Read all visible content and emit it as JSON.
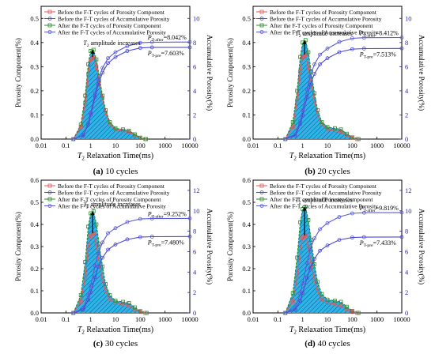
{
  "chart_data": [
    {
      "type": "line",
      "caption_letter": "(a)",
      "caption_text": "10 cycles",
      "xlabel_pre": "T",
      "xlabel_sub": "2",
      "xlabel_post": " Relaxation Time(ms)",
      "ylabel_left": "Porosity Component(%)",
      "ylabel_right": "Accumulative Porosity(%)",
      "x_scale": "log",
      "xlim": [
        0.01,
        10000
      ],
      "ylim_left": [
        0,
        0.55
      ],
      "ylim_right": [
        0,
        11
      ],
      "xticks": [
        "0.01",
        "0.1",
        "1",
        "10",
        "100",
        "1000",
        "10000"
      ],
      "yticks_left": [
        "0.0",
        "0.1",
        "0.2",
        "0.3",
        "0.4",
        "0.5"
      ],
      "yticks_right": [
        "0",
        "2",
        "4",
        "6",
        "8",
        "10"
      ],
      "legend": [
        "Before the F-T cycles of Porosity Component",
        "Before the F-T cycles of Accumulative Porosity",
        "After the F-T cycles of Porosity Component",
        "After the F-T cycles of Accumulative Porosity"
      ],
      "annotation_amplitude_pre": "T",
      "annotation_amplitude_sub": "2",
      "annotation_amplitude_post": " amplitude increases",
      "annot_after": "P",
      "annot_after_sub": "T-after",
      "annot_after_val": "=8.042%",
      "annot_before": "P",
      "annot_before_sub": "T-pre",
      "annot_before_val": "=7.603%",
      "before_component": [
        [
          0.2,
          0.0
        ],
        [
          0.4,
          0.05
        ],
        [
          0.6,
          0.15
        ],
        [
          0.8,
          0.27
        ],
        [
          1.0,
          0.33
        ],
        [
          1.3,
          0.34
        ],
        [
          1.7,
          0.3
        ],
        [
          2.2,
          0.24
        ],
        [
          3.0,
          0.17
        ],
        [
          4.0,
          0.11
        ],
        [
          6.0,
          0.06
        ],
        [
          10,
          0.04
        ],
        [
          20,
          0.035
        ],
        [
          35,
          0.03
        ],
        [
          60,
          0.015
        ],
        [
          100,
          0.005
        ],
        [
          160,
          0.0
        ]
      ],
      "after_component": [
        [
          0.2,
          0.0
        ],
        [
          0.4,
          0.06
        ],
        [
          0.6,
          0.18
        ],
        [
          0.8,
          0.31
        ],
        [
          1.0,
          0.365
        ],
        [
          1.3,
          0.37
        ],
        [
          1.7,
          0.33
        ],
        [
          2.2,
          0.26
        ],
        [
          3.0,
          0.18
        ],
        [
          4.0,
          0.12
        ],
        [
          6.0,
          0.07
        ],
        [
          10,
          0.045
        ],
        [
          20,
          0.04
        ],
        [
          35,
          0.035
        ],
        [
          60,
          0.02
        ],
        [
          100,
          0.006
        ],
        [
          170,
          0.0
        ]
      ],
      "before_accumulative": [
        [
          0.2,
          0.0
        ],
        [
          0.5,
          0.3
        ],
        [
          0.8,
          1.2
        ],
        [
          1.0,
          2.0
        ],
        [
          1.5,
          3.5
        ],
        [
          2.0,
          4.5
        ],
        [
          3.0,
          5.5
        ],
        [
          5.0,
          6.3
        ],
        [
          10,
          6.8
        ],
        [
          30,
          7.3
        ],
        [
          100,
          7.55
        ],
        [
          300,
          7.6
        ],
        [
          10000,
          7.603
        ]
      ],
      "after_accumulative": [
        [
          0.2,
          0.0
        ],
        [
          0.5,
          0.35
        ],
        [
          0.8,
          1.35
        ],
        [
          1.0,
          2.2
        ],
        [
          1.5,
          3.8
        ],
        [
          2.0,
          4.9
        ],
        [
          3.0,
          5.9
        ],
        [
          5.0,
          6.7
        ],
        [
          10,
          7.2
        ],
        [
          30,
          7.7
        ],
        [
          100,
          7.98
        ],
        [
          300,
          8.03
        ],
        [
          10000,
          8.042
        ]
      ]
    },
    {
      "type": "line",
      "caption_letter": "(b)",
      "caption_text": "20 cycles",
      "xlabel_pre": "T",
      "xlabel_sub": "2",
      "xlabel_post": " Relaxation Time(ms)",
      "ylabel_left": "Porosity Component(%)",
      "ylabel_right": "Accumulative Porosity(%)",
      "x_scale": "log",
      "xlim": [
        0.01,
        10000
      ],
      "ylim_left": [
        0,
        0.55
      ],
      "ylim_right": [
        0,
        11
      ],
      "xticks": [
        "0.01",
        "0.1",
        "1",
        "10",
        "100",
        "1000",
        "10000"
      ],
      "yticks_left": [
        "0.0",
        "0.1",
        "0.2",
        "0.3",
        "0.4",
        "0.5"
      ],
      "yticks_right": [
        "0",
        "2",
        "4",
        "6",
        "8",
        "10"
      ],
      "legend": [
        "Before the F-T cycles of Porosity Component",
        "Before the F-T cycles of Accumulative Porosity",
        "After the F-T cycles of Porosity Component",
        "After the F-T cycles of Accumulative Porosity"
      ],
      "annotation_amplitude_pre": "T",
      "annotation_amplitude_sub": "2",
      "annotation_amplitude_post": " amplitude increases",
      "annot_after": "P",
      "annot_after_sub": "T-after",
      "annot_after_val": "=8.412%",
      "annot_before": "P",
      "annot_before_sub": "T-pre",
      "annot_before_val": "=7.513%",
      "before_component": [
        [
          0.2,
          0.0
        ],
        [
          0.4,
          0.05
        ],
        [
          0.6,
          0.16
        ],
        [
          0.8,
          0.28
        ],
        [
          1.0,
          0.34
        ],
        [
          1.3,
          0.35
        ],
        [
          1.7,
          0.3
        ],
        [
          2.2,
          0.23
        ],
        [
          3.0,
          0.16
        ],
        [
          4.0,
          0.1
        ],
        [
          6.0,
          0.06
        ],
        [
          10,
          0.04
        ],
        [
          20,
          0.035
        ],
        [
          35,
          0.03
        ],
        [
          60,
          0.015
        ],
        [
          100,
          0.005
        ],
        [
          160,
          0.0
        ]
      ],
      "after_component": [
        [
          0.2,
          0.0
        ],
        [
          0.4,
          0.07
        ],
        [
          0.6,
          0.2
        ],
        [
          0.8,
          0.34
        ],
        [
          1.0,
          0.4
        ],
        [
          1.3,
          0.41
        ],
        [
          1.7,
          0.36
        ],
        [
          2.2,
          0.28
        ],
        [
          3.0,
          0.19
        ],
        [
          4.0,
          0.12
        ],
        [
          6.0,
          0.07
        ],
        [
          10,
          0.05
        ],
        [
          20,
          0.045
        ],
        [
          35,
          0.04
        ],
        [
          60,
          0.022
        ],
        [
          100,
          0.007
        ],
        [
          180,
          0.0
        ]
      ],
      "before_accumulative": [
        [
          0.2,
          0.0
        ],
        [
          0.5,
          0.3
        ],
        [
          0.8,
          1.25
        ],
        [
          1.0,
          2.0
        ],
        [
          1.5,
          3.5
        ],
        [
          2.0,
          4.5
        ],
        [
          3.0,
          5.4
        ],
        [
          5.0,
          6.2
        ],
        [
          10,
          6.7
        ],
        [
          30,
          7.2
        ],
        [
          100,
          7.45
        ],
        [
          300,
          7.5
        ],
        [
          10000,
          7.513
        ]
      ],
      "after_accumulative": [
        [
          0.2,
          0.0
        ],
        [
          0.5,
          0.4
        ],
        [
          0.8,
          1.5
        ],
        [
          1.0,
          2.4
        ],
        [
          1.5,
          4.1
        ],
        [
          2.0,
          5.2
        ],
        [
          3.0,
          6.2
        ],
        [
          5.0,
          7.0
        ],
        [
          10,
          7.5
        ],
        [
          30,
          8.05
        ],
        [
          100,
          8.35
        ],
        [
          300,
          8.4
        ],
        [
          10000,
          8.412
        ]
      ]
    },
    {
      "type": "line",
      "caption_letter": "(c)",
      "caption_text": "30 cycles",
      "xlabel_pre": "T",
      "xlabel_sub": "2",
      "xlabel_post": " Relaxation Time(ms)",
      "ylabel_left": "Porosity Component(%)",
      "ylabel_right": "Accumulative Porosity(%)",
      "x_scale": "log",
      "xlim": [
        0.01,
        10000
      ],
      "ylim_left": [
        0,
        0.6
      ],
      "ylim_right": [
        0,
        13
      ],
      "xticks": [
        "0.01",
        "0.1",
        "1",
        "10",
        "100",
        "1000",
        "10000"
      ],
      "yticks_left": [
        "0.0",
        "0.1",
        "0.2",
        "0.3",
        "0.4",
        "0.5",
        "0.6"
      ],
      "yticks_right": [
        "0",
        "2",
        "4",
        "6",
        "8",
        "10",
        "12"
      ],
      "legend": [
        "Before the F-T cycles of Porosity Component",
        "Before the F-T cycles of Accumulative Porosity",
        "After the F-T cycles of Porosity Component",
        "After the F-T cycles of Accumulative Porosity"
      ],
      "annotation_amplitude_pre": "T",
      "annotation_amplitude_sub": "2",
      "annotation_amplitude_post": " amplitude increases",
      "annot_after": "P",
      "annot_after_sub": "T-after",
      "annot_after_val": "=9.252%",
      "annot_before": "P",
      "annot_before_sub": "T-pre",
      "annot_before_val": "=7.480%",
      "before_component": [
        [
          0.2,
          0.0
        ],
        [
          0.4,
          0.05
        ],
        [
          0.6,
          0.16
        ],
        [
          0.8,
          0.29
        ],
        [
          1.0,
          0.35
        ],
        [
          1.3,
          0.36
        ],
        [
          1.7,
          0.31
        ],
        [
          2.2,
          0.23
        ],
        [
          3.0,
          0.15
        ],
        [
          4.0,
          0.1
        ],
        [
          6.0,
          0.06
        ],
        [
          10,
          0.045
        ],
        [
          20,
          0.04
        ],
        [
          35,
          0.032
        ],
        [
          60,
          0.015
        ],
        [
          100,
          0.005
        ],
        [
          160,
          0.0
        ]
      ],
      "after_component": [
        [
          0.2,
          0.0
        ],
        [
          0.4,
          0.08
        ],
        [
          0.6,
          0.23
        ],
        [
          0.8,
          0.39
        ],
        [
          1.0,
          0.45
        ],
        [
          1.3,
          0.46
        ],
        [
          1.7,
          0.4
        ],
        [
          2.2,
          0.31
        ],
        [
          3.0,
          0.21
        ],
        [
          4.0,
          0.13
        ],
        [
          6.0,
          0.08
        ],
        [
          10,
          0.055
        ],
        [
          20,
          0.05
        ],
        [
          35,
          0.045
        ],
        [
          60,
          0.025
        ],
        [
          100,
          0.008
        ],
        [
          180,
          0.0
        ]
      ],
      "before_accumulative": [
        [
          0.2,
          0.0
        ],
        [
          0.5,
          0.3
        ],
        [
          0.8,
          1.25
        ],
        [
          1.0,
          2.0
        ],
        [
          1.5,
          3.5
        ],
        [
          2.0,
          4.5
        ],
        [
          3.0,
          5.4
        ],
        [
          5.0,
          6.2
        ],
        [
          10,
          6.7
        ],
        [
          30,
          7.2
        ],
        [
          100,
          7.42
        ],
        [
          300,
          7.47
        ],
        [
          10000,
          7.48
        ]
      ],
      "after_accumulative": [
        [
          0.2,
          0.0
        ],
        [
          0.5,
          0.45
        ],
        [
          0.8,
          1.7
        ],
        [
          1.0,
          2.7
        ],
        [
          1.5,
          4.6
        ],
        [
          2.0,
          5.8
        ],
        [
          3.0,
          6.9
        ],
        [
          5.0,
          7.8
        ],
        [
          10,
          8.3
        ],
        [
          30,
          8.9
        ],
        [
          100,
          9.2
        ],
        [
          300,
          9.24
        ],
        [
          10000,
          9.252
        ]
      ]
    },
    {
      "type": "line",
      "caption_letter": "(d)",
      "caption_text": "40 cycles",
      "xlabel_pre": "T",
      "xlabel_sub": "2",
      "xlabel_post": " Relaxation Time(ms)",
      "ylabel_left": "Porosity Component(%)",
      "ylabel_right": "Accumulative Porosity(%)",
      "x_scale": "log",
      "xlim": [
        0.01,
        10000
      ],
      "ylim_left": [
        0,
        0.6
      ],
      "ylim_right": [
        0,
        13
      ],
      "xticks": [
        "0.01",
        "0.1",
        "1",
        "10",
        "100",
        "1000",
        "10000"
      ],
      "yticks_left": [
        "0.0",
        "0.1",
        "0.2",
        "0.3",
        "0.4",
        "0.5",
        "0.6"
      ],
      "yticks_right": [
        "0",
        "2",
        "4",
        "6",
        "8",
        "10",
        "12"
      ],
      "legend": [
        "Before the F-T cycles of Porosity Component",
        "Before the F-T cycles of Accumulative Porosity",
        "After the F-T cycles of Porosity Component",
        "After the F-T cycles of Accumulative Porosity"
      ],
      "annotation_amplitude_pre": "T",
      "annotation_amplitude_sub": "2",
      "annotation_amplitude_post": " amplitude increases",
      "annot_after": "P",
      "annot_after_sub": "T-after",
      "annot_after_val": "=9.819%",
      "annot_before": "P",
      "annot_before_sub": "T-pre",
      "annot_before_val": "=7.433%",
      "before_component": [
        [
          0.2,
          0.0
        ],
        [
          0.4,
          0.05
        ],
        [
          0.6,
          0.16
        ],
        [
          0.8,
          0.28
        ],
        [
          1.0,
          0.34
        ],
        [
          1.3,
          0.35
        ],
        [
          1.7,
          0.3
        ],
        [
          2.2,
          0.22
        ],
        [
          3.0,
          0.15
        ],
        [
          4.0,
          0.1
        ],
        [
          6.0,
          0.06
        ],
        [
          10,
          0.045
        ],
        [
          20,
          0.04
        ],
        [
          35,
          0.032
        ],
        [
          60,
          0.015
        ],
        [
          100,
          0.005
        ],
        [
          160,
          0.0
        ]
      ],
      "after_component": [
        [
          0.2,
          0.0
        ],
        [
          0.4,
          0.09
        ],
        [
          0.6,
          0.25
        ],
        [
          0.8,
          0.41
        ],
        [
          1.0,
          0.47
        ],
        [
          1.3,
          0.48
        ],
        [
          1.7,
          0.42
        ],
        [
          2.2,
          0.33
        ],
        [
          3.0,
          0.22
        ],
        [
          4.0,
          0.14
        ],
        [
          6.0,
          0.085
        ],
        [
          10,
          0.06
        ],
        [
          20,
          0.055
        ],
        [
          35,
          0.05
        ],
        [
          60,
          0.028
        ],
        [
          100,
          0.009
        ],
        [
          180,
          0.0
        ]
      ],
      "before_accumulative": [
        [
          0.2,
          0.0
        ],
        [
          0.5,
          0.3
        ],
        [
          0.8,
          1.2
        ],
        [
          1.0,
          1.95
        ],
        [
          1.5,
          3.4
        ],
        [
          2.0,
          4.4
        ],
        [
          3.0,
          5.3
        ],
        [
          5.0,
          6.1
        ],
        [
          10,
          6.6
        ],
        [
          30,
          7.15
        ],
        [
          100,
          7.38
        ],
        [
          300,
          7.42
        ],
        [
          10000,
          7.433
        ]
      ],
      "after_accumulative": [
        [
          0.2,
          0.0
        ],
        [
          0.5,
          0.5
        ],
        [
          0.8,
          1.85
        ],
        [
          1.0,
          2.9
        ],
        [
          1.5,
          4.9
        ],
        [
          2.0,
          6.2
        ],
        [
          3.0,
          7.3
        ],
        [
          5.0,
          8.2
        ],
        [
          10,
          8.8
        ],
        [
          30,
          9.4
        ],
        [
          100,
          9.75
        ],
        [
          300,
          9.81
        ],
        [
          10000,
          9.819
        ]
      ]
    }
  ],
  "colors": {
    "before_component": "#e05a5a",
    "before_accumulative": "#4a4ad8",
    "after_component": "#2e8b2e",
    "after_accumulative": "#5a5ad8",
    "fill": "#20b2e6",
    "hatch": "#1a3f8a",
    "axis": "#000000",
    "right_axis": "#1f1fb0"
  }
}
